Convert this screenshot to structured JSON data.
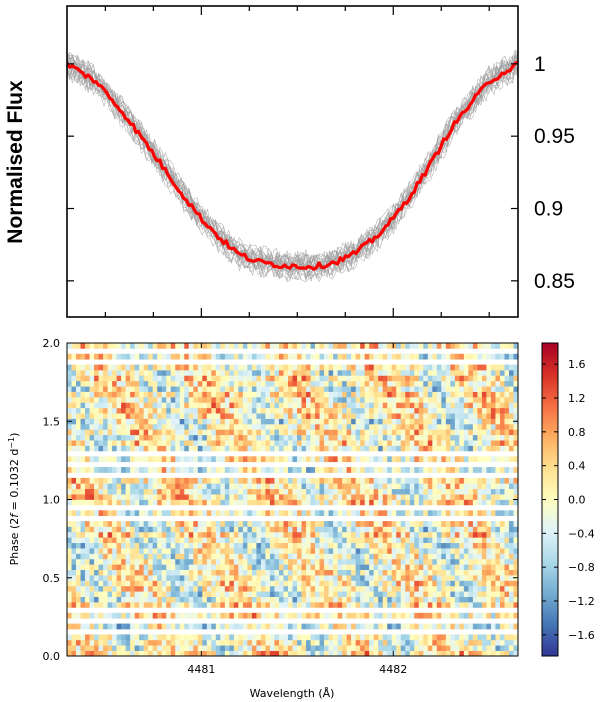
{
  "chart_data": [
    {
      "type": "line",
      "panel": "top",
      "ylabel": "Normalised Flux",
      "xlim": [
        4480.3,
        4482.65
      ],
      "ylim": [
        0.825,
        1.04
      ],
      "yticks": [
        0.85,
        0.9,
        0.95,
        1.0
      ],
      "ytick_labels": [
        "0.85",
        "0.9",
        "0.95",
        "1"
      ],
      "xticks": [
        4480.5,
        4480.75,
        4481.0,
        4481.25,
        4481.5,
        4481.75,
        4482.0,
        4482.25,
        4482.5
      ],
      "series": [
        {
          "name": "mean profile",
          "color": "#ff0000",
          "x": [
            4480.3,
            4480.45,
            4480.6,
            4480.75,
            4480.9,
            4481.0,
            4481.1,
            4481.2,
            4481.3,
            4481.4,
            4481.5,
            4481.6,
            4481.7,
            4481.8,
            4481.9,
            4482.0,
            4482.1,
            4482.2,
            4482.3,
            4482.4,
            4482.5,
            4482.65
          ],
          "y": [
            1.0,
            0.988,
            0.965,
            0.938,
            0.91,
            0.893,
            0.879,
            0.868,
            0.863,
            0.861,
            0.86,
            0.86,
            0.863,
            0.869,
            0.879,
            0.893,
            0.911,
            0.932,
            0.955,
            0.972,
            0.988,
            1.0
          ]
        }
      ],
      "individual_spectra_color": "#9e9e9e",
      "individual_spectra_count": 22
    },
    {
      "type": "heatmap",
      "panel": "bottom",
      "xlabel": "Wavelength (Å)",
      "ylabel_prefix": "Phase (2",
      "ylabel_f": "f",
      "ylabel_value": " = 0.1032 d",
      "ylabel_exp": "−1",
      "ylabel_suffix": ")",
      "xlim": [
        4480.3,
        4482.65
      ],
      "ylim": [
        0.0,
        2.0
      ],
      "xticks": [
        4481,
        4482
      ],
      "xtick_labels": [
        "4481",
        "4482"
      ],
      "yticks": [
        0.0,
        0.5,
        1.0,
        1.5,
        2.0
      ],
      "ytick_labels": [
        "0.0",
        "0.5",
        "1.0",
        "1.5",
        "2.0"
      ],
      "gap_phases": [
        0.14,
        0.22,
        0.29,
        0.89,
        0.96,
        1.14,
        1.22,
        1.29,
        1.89,
        1.96
      ],
      "colorbar": {
        "min": -1.85,
        "max": 1.85,
        "ticks": [
          1.6,
          1.2,
          0.8,
          0.4,
          0.0,
          -0.4,
          -0.8,
          -1.2,
          -1.6
        ],
        "tick_labels": [
          "1.6",
          "1.2",
          "0.8",
          "0.4",
          "0.0",
          "−0.4",
          "−0.8",
          "−1.2",
          "−1.6"
        ],
        "colormap": "RdYlBu_r"
      }
    }
  ]
}
